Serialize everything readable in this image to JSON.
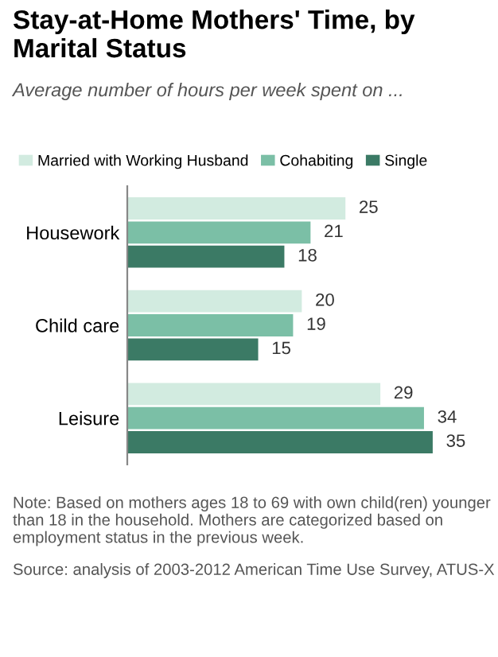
{
  "chart_data": {
    "type": "bar",
    "orientation": "horizontal",
    "title": "Stay-at-Home Mothers' Time, by Marital Status",
    "subtitle": "Average number of hours per week spent on ...",
    "categories": [
      "Housework",
      "Child care",
      "Leisure"
    ],
    "series": [
      {
        "name": "Married with Working Husband",
        "color": "#d2ebe0",
        "values": [
          25,
          20,
          29
        ]
      },
      {
        "name": "Cohabiting",
        "color": "#7bbfa6",
        "values": [
          21,
          19,
          34
        ]
      },
      {
        "name": "Single",
        "color": "#3b7a65",
        "values": [
          18,
          15,
          35
        ]
      }
    ],
    "data_labels": true,
    "legend": "top",
    "grid": false,
    "annotations": [
      "Note: Based on mothers ages 18 to 69 with own child(ren) younger than 18 in the household. Mothers are categorized based on employment status in the previous week.",
      "Source: analysis of 2003-2012 American Time Use Survey, ATUS-X"
    ]
  }
}
